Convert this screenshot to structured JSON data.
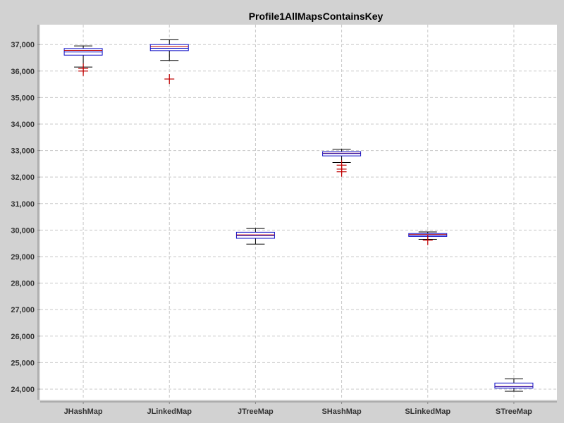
{
  "chart_data": {
    "type": "box",
    "title": "Profile1AllMapsContainsKey",
    "xlabel": "",
    "ylabel": "",
    "ylim": [
      23600,
      37750
    ],
    "yticks": [
      24000,
      25000,
      26000,
      27000,
      28000,
      29000,
      30000,
      31000,
      32000,
      33000,
      34000,
      35000,
      36000,
      37000
    ],
    "ytick_labels": [
      "24,000",
      "25,000",
      "26,000",
      "27,000",
      "28,000",
      "29,000",
      "30,000",
      "31,000",
      "32,000",
      "33,000",
      "34,000",
      "35,000",
      "36,000",
      "37,000"
    ],
    "grid": true,
    "categories": [
      "JHashMap",
      "JLinkedMap",
      "JTreeMap",
      "SHashMap",
      "SLinkedMap",
      "STreeMap"
    ],
    "boxes": [
      {
        "category": "JHashMap",
        "whisker_low": 36150,
        "q1": 36600,
        "median": 36780,
        "mean": 36720,
        "q3": 36850,
        "whisker_high": 36950,
        "outliers": [
          36000,
          36100
        ]
      },
      {
        "category": "JLinkedMap",
        "whisker_low": 36400,
        "q1": 36770,
        "median": 36930,
        "mean": 36860,
        "q3": 37000,
        "whisker_high": 37180,
        "outliers": [
          35700
        ]
      },
      {
        "category": "JTreeMap",
        "whisker_low": 29470,
        "q1": 29690,
        "median": 29820,
        "mean": 29790,
        "q3": 29920,
        "whisker_high": 30060,
        "outliers": []
      },
      {
        "category": "SHashMap",
        "whisker_low": 32550,
        "q1": 32800,
        "median": 32900,
        "mean": 32890,
        "q3": 32960,
        "whisker_high": 33050,
        "outliers": [
          32200,
          32300,
          32450
        ]
      },
      {
        "category": "SLinkedMap",
        "whisker_low": 29650,
        "q1": 29760,
        "median": 29830,
        "mean": 29810,
        "q3": 29870,
        "whisker_high": 29930,
        "outliers": [
          29620
        ]
      },
      {
        "category": "STreeMap",
        "whisker_low": 23920,
        "q1": 24040,
        "median": 24100,
        "mean": 24090,
        "q3": 24230,
        "whisker_high": 24390,
        "outliers": []
      }
    ],
    "colors": {
      "box_outline": "#1010c8",
      "median_line": "#c00000",
      "outlier": "#c00000",
      "whisker": "#000000",
      "grid": "#c8c8c8",
      "plot_background": "#ffffff",
      "page_background": "#d2d2d2"
    }
  }
}
